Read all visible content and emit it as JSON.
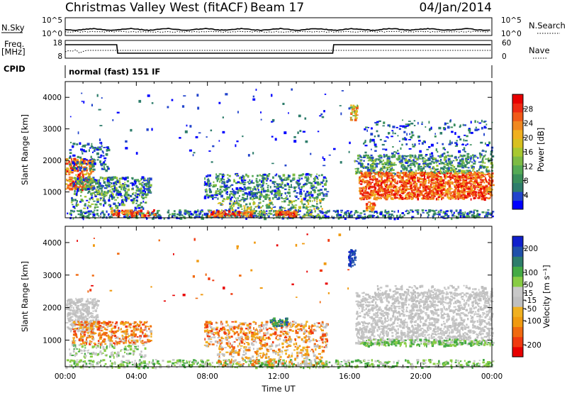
{
  "header": {
    "station": "Christmas Valley West (fitACF)",
    "beam": "Beam 17",
    "date": "04/Jan/2014"
  },
  "top_panels": {
    "nsky_label": "N.Sky",
    "nsearch_label": "N.Search",
    "nsky_ticks": [
      "10^5",
      "10^0"
    ],
    "nsearch_ticks": [
      "10^5",
      "10^0"
    ],
    "freq_label_line1": "Freq.",
    "freq_label_line2": "[MHz]",
    "freq_ticks": [
      "18",
      "8"
    ],
    "nave_label": "Nave",
    "nave_ticks": [
      "60",
      "0"
    ],
    "cpid_label": "CPID",
    "cpid_text": "normal (fast) 151 IF"
  },
  "chart_data": [
    {
      "type": "heatmap",
      "name": "Power",
      "ylabel": "Slant Range [km]",
      "xlabel": "",
      "y_ticks": [
        "4000",
        "3000",
        "2000",
        "1000"
      ],
      "y_range": [
        180,
        4500
      ],
      "x_range": [
        "00:00",
        "24:00"
      ],
      "colorbar": {
        "label": "Power [dB]",
        "ticks": [
          "28",
          "24",
          "20",
          "16",
          "12",
          "8",
          "4"
        ],
        "range": [
          0,
          32
        ],
        "colors": [
          "#0000ff",
          "#2244cc",
          "#2e7d6b",
          "#3a8f5a",
          "#55aa55",
          "#7dbb44",
          "#a8c830",
          "#d8c020",
          "#f0b020",
          "#f08820",
          "#f05a18",
          "#ee2a12",
          "#e80000"
        ]
      }
    },
    {
      "type": "heatmap",
      "name": "Velocity",
      "ylabel": "Slant Range [km]",
      "xlabel": "Time UT",
      "y_ticks": [
        "4000",
        "3000",
        "2000",
        "1000"
      ],
      "y_range": [
        180,
        4500
      ],
      "x_ticks": [
        "00:00",
        "04:00",
        "08:00",
        "12:00",
        "16:00",
        "20:00",
        "00:00"
      ],
      "x_range": [
        "00:00",
        "24:00"
      ],
      "colorbar": {
        "label": "Velocity [m s⁻¹]",
        "ticks": [
          "200",
          "100",
          "50",
          "15",
          "-15",
          "-50",
          "-100",
          "-200"
        ],
        "range": [
          -250,
          250
        ],
        "colors": [
          "#e80000",
          "#f03a10",
          "#f06a10",
          "#f09a10",
          "#f0b020",
          "#bfbfbf",
          "#c8c8c8",
          "#88cc44",
          "#44aa44",
          "#2e7d6b",
          "#2050aa",
          "#1020cc"
        ]
      }
    }
  ]
}
